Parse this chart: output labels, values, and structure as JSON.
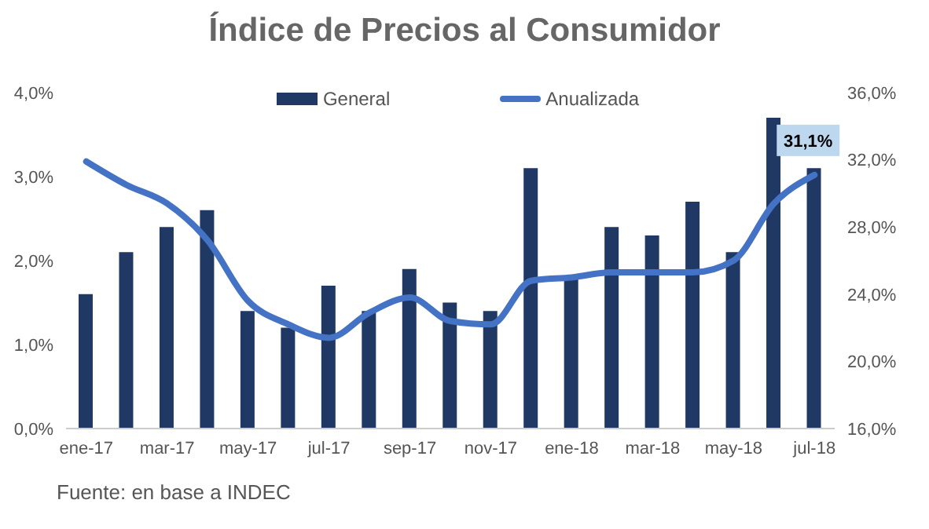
{
  "chart_data": {
    "type": "bar",
    "title": "Índice de Precios al Consumidor",
    "categories": [
      "ene-17",
      null,
      "mar-17",
      null,
      "may-17",
      null,
      "jul-17",
      null,
      "sep-17",
      null,
      "nov-17",
      null,
      "ene-18",
      null,
      "mar-18",
      null,
      "may-18",
      null,
      "jul-18"
    ],
    "series": [
      {
        "name": "General",
        "color": "#1f3864",
        "values": [
          1.6,
          2.1,
          2.4,
          2.6,
          1.4,
          1.2,
          1.7,
          1.4,
          1.9,
          1.5,
          1.4,
          3.1,
          1.8,
          2.4,
          2.3,
          2.7,
          2.1,
          3.7,
          3.1
        ]
      },
      {
        "name": "Anualizada",
        "type": "line",
        "axis": "y2",
        "color": "#4472c4",
        "values": [
          31.9,
          30.5,
          29.4,
          27.2,
          23.6,
          22.2,
          21.4,
          22.9,
          23.8,
          22.4,
          22.2,
          24.8,
          25.0,
          25.3,
          25.3,
          25.3,
          26.0,
          29.4,
          31.1
        ],
        "value_labels": [
          null,
          null,
          null,
          null,
          null,
          null,
          null,
          null,
          null,
          null,
          null,
          null,
          null,
          null,
          null,
          null,
          null,
          null,
          "31,1%"
        ]
      }
    ],
    "ylim": [
      0,
      4
    ],
    "yticks": [
      {
        "value": 0,
        "label": "0,0%"
      },
      {
        "value": 1,
        "label": "1,0%"
      },
      {
        "value": 2,
        "label": "2,0%"
      },
      {
        "value": 3,
        "label": "3,0%"
      },
      {
        "value": 4,
        "label": "4,0%"
      }
    ],
    "y2lim": [
      16,
      36
    ],
    "y2ticks": [
      {
        "value": 16,
        "label": "16,0%"
      },
      {
        "value": 20,
        "label": "20,0%"
      },
      {
        "value": 24,
        "label": "24,0%"
      },
      {
        "value": 28,
        "label": "28,0%"
      },
      {
        "value": 32,
        "label": "32,0%"
      },
      {
        "value": 36,
        "label": "36,0%"
      }
    ],
    "annotations": [
      "Fuente: en base a INDEC"
    ],
    "legend": "top",
    "grid": false,
    "marker": "none"
  }
}
